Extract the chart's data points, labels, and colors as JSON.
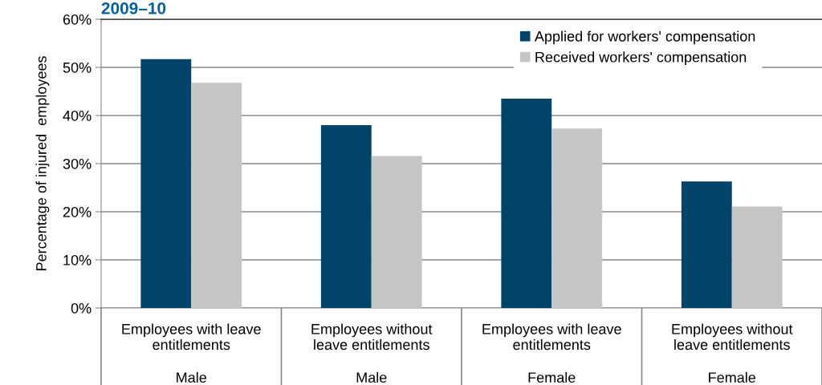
{
  "chart_data": {
    "type": "bar",
    "title": "2009–10",
    "ylabel": "Percentage of injured  employees",
    "categories": [
      "Employees with leave\nentitlements",
      "Employees without\nleave entitlements",
      "Employees with leave\nentitlements",
      "Employees without\nleave entitlements"
    ],
    "series": [
      {
        "name": "Applied for workers' compensation",
        "color": "#00446a",
        "values": [
          51.7,
          38.0,
          43.5,
          26.3
        ]
      },
      {
        "name": "Received workers' compensation",
        "color": "#c4c5c7",
        "values": [
          46.8,
          31.6,
          37.3,
          21.1
        ]
      }
    ],
    "annotations": [
      "Male",
      "Male",
      "Female",
      "Female"
    ],
    "ylim": [
      0,
      60
    ],
    "yticks": [
      {
        "value": 0,
        "label": "0%"
      },
      {
        "value": 10,
        "label": "10%"
      },
      {
        "value": 20,
        "label": "20%"
      },
      {
        "value": 30,
        "label": "30%"
      },
      {
        "value": 40,
        "label": "40%"
      },
      {
        "value": 50,
        "label": "50%"
      },
      {
        "value": 60,
        "label": "60%"
      }
    ],
    "grid": "y",
    "legend": "top right"
  }
}
